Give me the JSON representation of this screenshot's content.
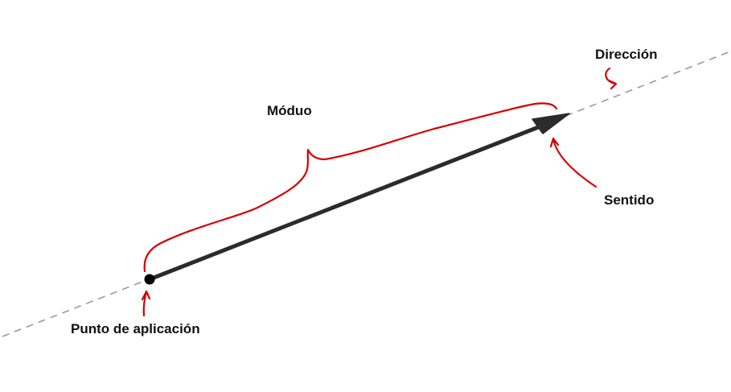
{
  "labels": {
    "direccion": "Dirección",
    "modulo": "Móduo",
    "sentido": "Sentido",
    "punto_aplicacion": "Punto de aplicación"
  },
  "colors": {
    "background": "#ffffff",
    "vector": "#2b2b2b",
    "direction_line": "#9a9a9a",
    "annotation": "#d40000",
    "text": "#111111",
    "origin_point": "#000000"
  },
  "icons": {
    "origin": "application-point-dot",
    "arrowhead": "arrowhead-icon"
  }
}
